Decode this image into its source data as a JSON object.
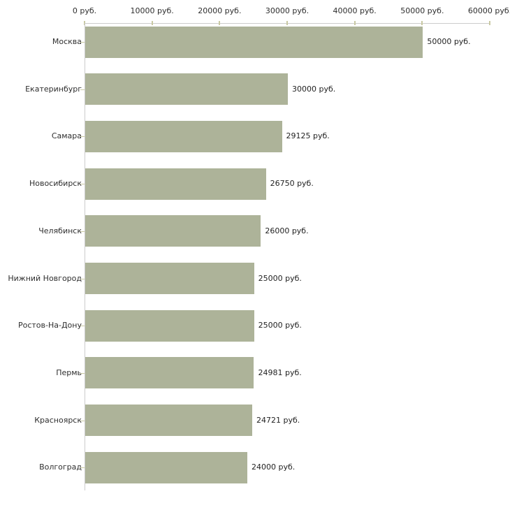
{
  "chart_data": {
    "type": "bar",
    "orientation": "horizontal",
    "title": "",
    "categories": [
      "Москва",
      "Екатеринбург",
      "Самара",
      "Новосибирск",
      "Челябинск",
      "Нижний Новгород",
      "Ростов-На-Дону",
      "Пермь",
      "Красноярск",
      "Волгоград"
    ],
    "values": [
      50000,
      30000,
      29125,
      26750,
      26000,
      25000,
      25000,
      24981,
      24721,
      24000
    ],
    "value_labels": [
      "50000 руб.",
      "30000 руб.",
      "29125 руб.",
      "26750 руб.",
      "26000 руб.",
      "25000 руб.",
      "25000 руб.",
      "24981 руб.",
      "24721 руб.",
      "24000 руб."
    ],
    "x_tick_values": [
      0,
      10000,
      20000,
      30000,
      40000,
      50000,
      60000
    ],
    "x_tick_labels": [
      "0 руб.",
      "10000 руб.",
      "20000 руб.",
      "30000 руб.",
      "40000 руб.",
      "50000 руб.",
      "60000 руб."
    ],
    "xlim": [
      0,
      60000
    ],
    "unit": "руб.",
    "grid": false,
    "legend": false,
    "colors": {
      "bar": "#adb399",
      "axis_line": "#cccccc",
      "tick": "#c9c9a3",
      "text": "#2e2e2e"
    }
  }
}
